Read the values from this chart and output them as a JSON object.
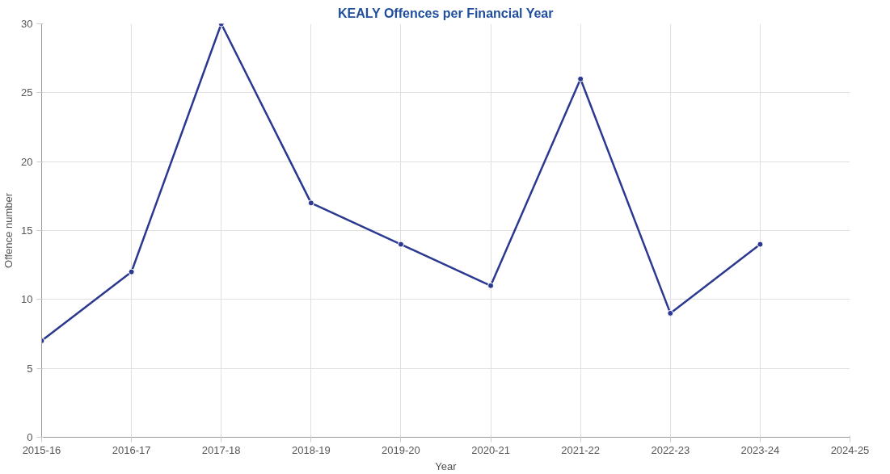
{
  "chart_data": {
    "type": "line",
    "title": "KEALY Offences per Financial Year",
    "xlabel": "Year",
    "ylabel": "Offence number",
    "categories": [
      "2015-16",
      "2016-17",
      "2017-18",
      "2018-19",
      "2019-20",
      "2020-21",
      "2021-22",
      "2022-23",
      "2023-24",
      "2024-25"
    ],
    "series": [
      {
        "color": "#2b3990",
        "values": [
          7,
          12,
          30,
          17,
          14,
          11,
          26,
          9,
          14,
          null
        ]
      }
    ],
    "ylim": [
      0,
      30
    ],
    "yticks": [
      0,
      5,
      10,
      15,
      20,
      25,
      30
    ],
    "grid": true,
    "marker": "circle",
    "line_style": "solid"
  }
}
